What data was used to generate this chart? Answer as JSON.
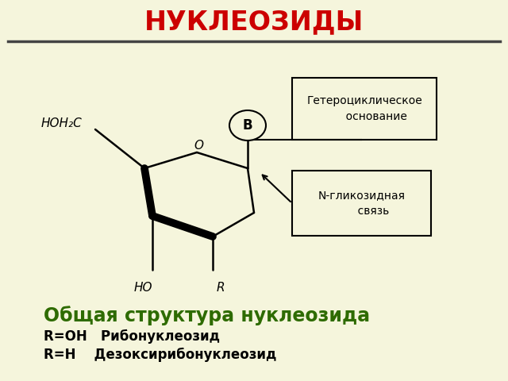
{
  "title": "НУКЛЕОЗИДЫ",
  "title_color": "#CC0000",
  "bg_color": "#F5F5DC",
  "subtitle_line1": "Общая структура нуклеозида",
  "subtitle_color": "#2E6B00",
  "line2": "R=OH   Рибонуклеозид",
  "line3": "R=H    Дезоксирибонуклеозид",
  "text_color": "#000000",
  "box1_text": "Гетероциклическое\n       основание",
  "box2_text": "N-гликозидная\n       связь",
  "label_HOH2C": "HOH₂C",
  "label_HO": "HO",
  "label_R": "R",
  "label_O": "O",
  "label_B": "B"
}
